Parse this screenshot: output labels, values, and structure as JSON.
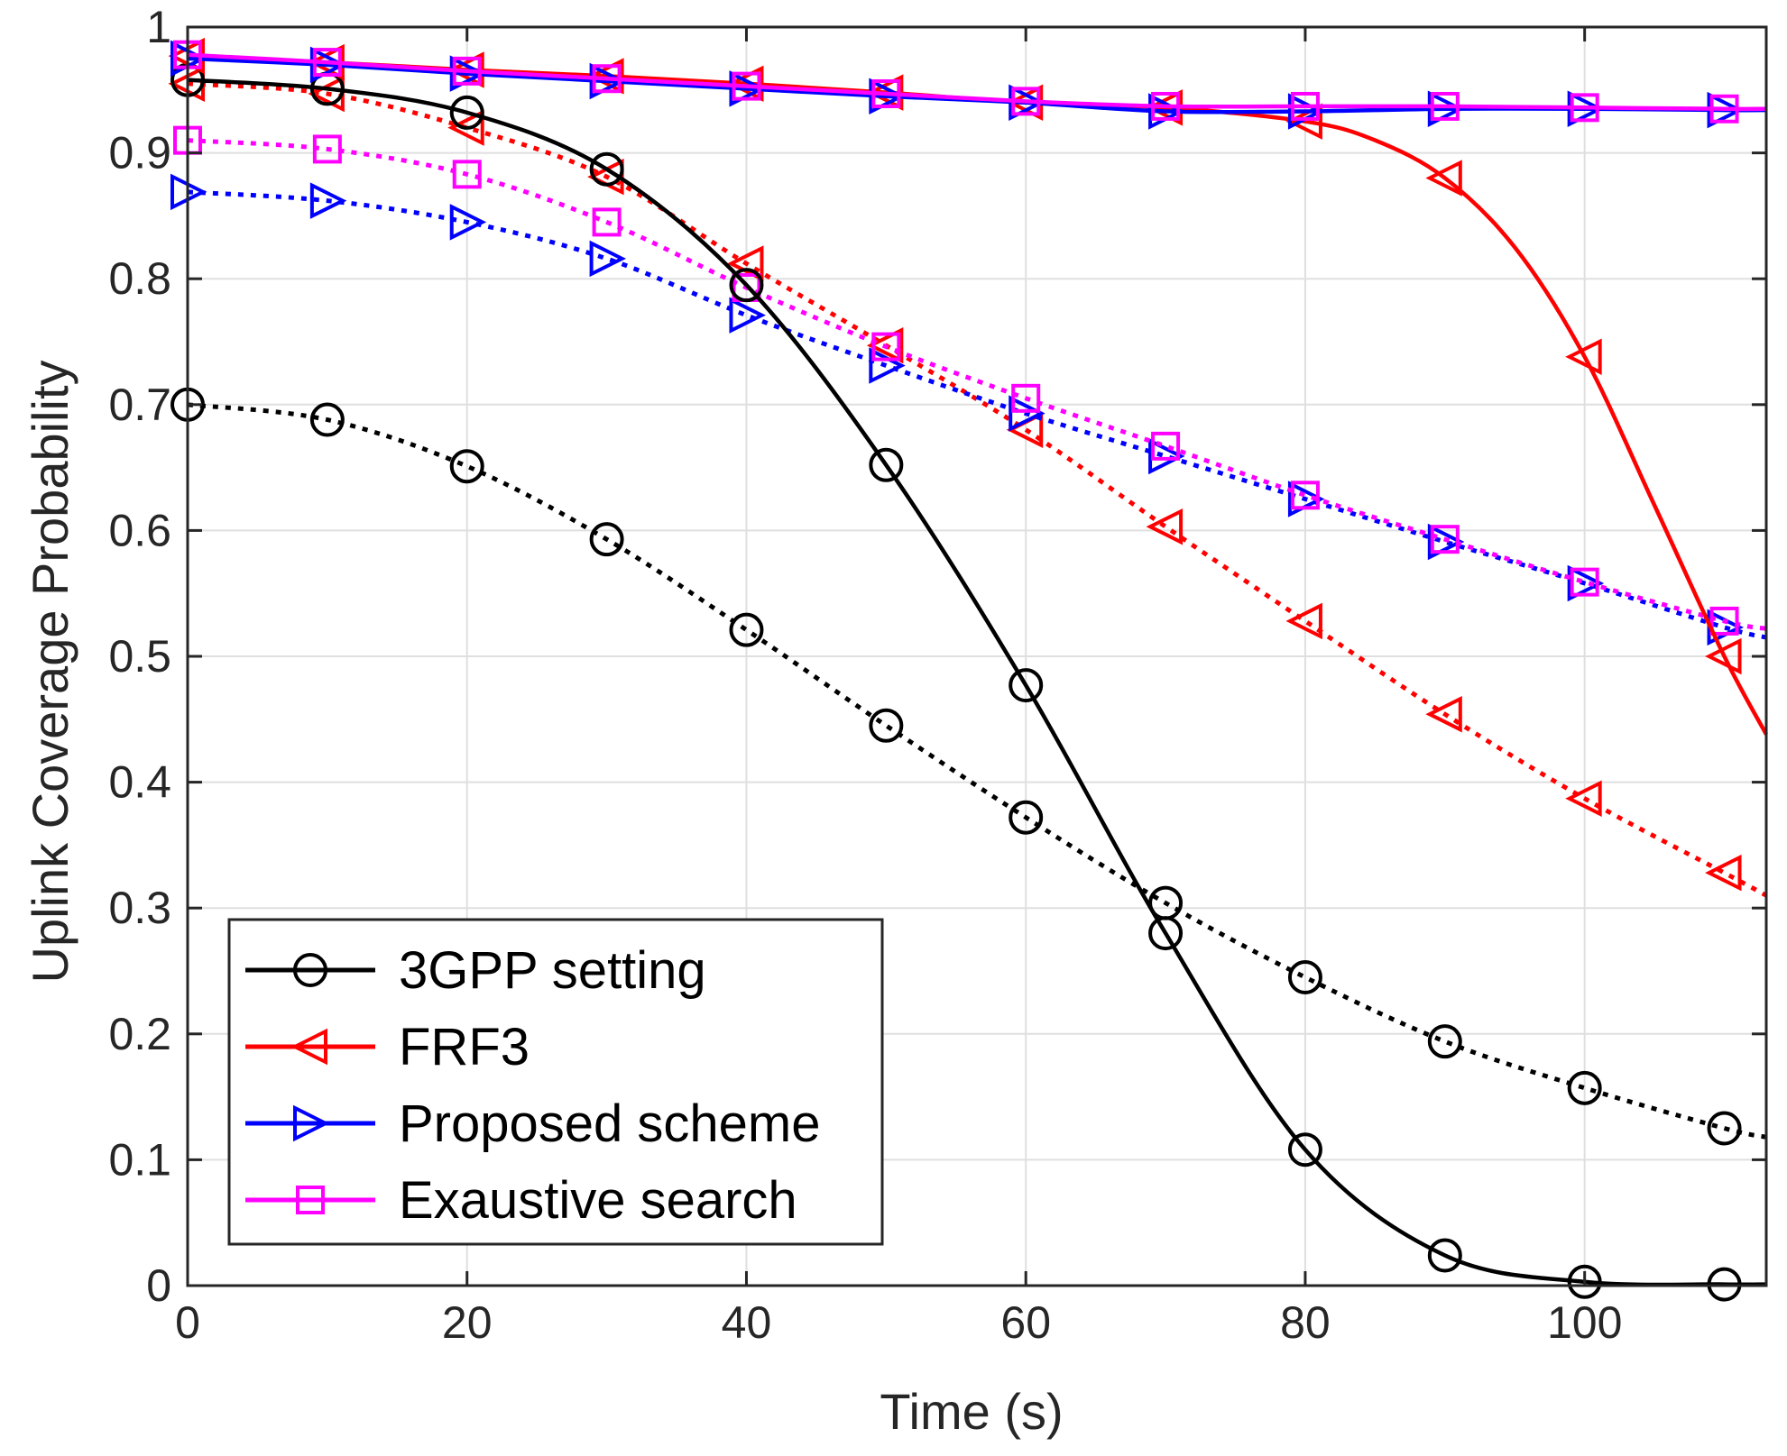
{
  "chart_data": {
    "type": "line",
    "title": "",
    "xlabel": "Time (s)",
    "ylabel": "Uplink Coverage Probability",
    "xlim": [
      0,
      113
    ],
    "ylim": [
      0,
      1
    ],
    "xticks": [
      0,
      20,
      40,
      60,
      80,
      100
    ],
    "yticks": [
      0,
      0.1,
      0.2,
      0.3,
      0.4,
      0.5,
      0.6,
      0.7,
      0.8,
      0.9,
      1
    ],
    "ytick_labels": [
      "0",
      "0.1",
      "0.2",
      "0.3",
      "0.4",
      "0.5",
      "0.6",
      "0.7",
      "0.8",
      "0.9",
      "1"
    ],
    "grid": true,
    "legend_position": "bottom-left",
    "legend": [
      {
        "label": "3GPP setting",
        "color": "#000000",
        "marker": "circle"
      },
      {
        "label": "FRF3",
        "color": "#ff0000",
        "marker": "triangle-left"
      },
      {
        "label": "Proposed scheme",
        "color": "#0000ff",
        "marker": "triangle-right"
      },
      {
        "label": "Exaustive search",
        "color": "#ff00ff",
        "marker": "square"
      }
    ],
    "series": [
      {
        "name": "3GPP setting (solid)",
        "color": "#000000",
        "marker": "circle",
        "dash": "solid",
        "x": [
          0,
          10,
          20,
          30,
          40,
          50,
          60,
          70,
          80,
          90,
          100,
          110,
          113
        ],
        "values": [
          0.958,
          0.951,
          0.932,
          0.887,
          0.795,
          0.652,
          0.477,
          0.28,
          0.108,
          0.024,
          0.003,
          0.001,
          0.001
        ],
        "marker_x": [
          0,
          10,
          20,
          30,
          40,
          50,
          60,
          70,
          80,
          90,
          100,
          110
        ],
        "marker_values": [
          0.958,
          0.951,
          0.932,
          0.887,
          0.795,
          0.652,
          0.477,
          0.28,
          0.108,
          0.024,
          0.003,
          0.001
        ]
      },
      {
        "name": "FRF3 (solid)",
        "color": "#ff0000",
        "marker": "triangle-left",
        "dash": "solid",
        "x": [
          0,
          10,
          20,
          30,
          40,
          50,
          60,
          70,
          80,
          85,
          90,
          95,
          100,
          105,
          110,
          113
        ],
        "values": [
          0.977,
          0.972,
          0.966,
          0.961,
          0.955,
          0.948,
          0.94,
          0.936,
          0.925,
          0.91,
          0.88,
          0.825,
          0.738,
          0.62,
          0.5,
          0.438
        ],
        "marker_x": [
          0,
          10,
          20,
          30,
          40,
          50,
          60,
          70,
          80,
          90,
          100,
          110
        ],
        "marker_values": [
          0.977,
          0.972,
          0.966,
          0.961,
          0.955,
          0.948,
          0.94,
          0.936,
          0.925,
          0.88,
          0.738,
          0.5
        ]
      },
      {
        "name": "Proposed scheme (solid)",
        "color": "#0000ff",
        "marker": "triangle-right",
        "dash": "solid",
        "x": [
          0,
          10,
          20,
          30,
          40,
          50,
          60,
          70,
          80,
          90,
          100,
          110,
          113
        ],
        "values": [
          0.975,
          0.97,
          0.963,
          0.957,
          0.951,
          0.945,
          0.94,
          0.933,
          0.933,
          0.935,
          0.935,
          0.934,
          0.934
        ],
        "marker_x": [
          0,
          10,
          20,
          30,
          40,
          50,
          60,
          70,
          80,
          90,
          100,
          110
        ],
        "marker_values": [
          0.975,
          0.97,
          0.963,
          0.957,
          0.951,
          0.945,
          0.94,
          0.933,
          0.933,
          0.935,
          0.935,
          0.934
        ]
      },
      {
        "name": "Exaustive search (solid)",
        "color": "#ff00ff",
        "marker": "square",
        "dash": "solid",
        "x": [
          0,
          10,
          20,
          30,
          40,
          50,
          60,
          70,
          80,
          90,
          100,
          110,
          113
        ],
        "values": [
          0.978,
          0.972,
          0.965,
          0.959,
          0.953,
          0.947,
          0.941,
          0.937,
          0.937,
          0.937,
          0.936,
          0.935,
          0.935
        ],
        "marker_x": [
          0,
          10,
          20,
          30,
          40,
          50,
          60,
          70,
          80,
          90,
          100,
          110
        ],
        "marker_values": [
          0.978,
          0.972,
          0.965,
          0.959,
          0.953,
          0.947,
          0.941,
          0.937,
          0.937,
          0.937,
          0.936,
          0.935
        ]
      },
      {
        "name": "3GPP setting (dotted)",
        "color": "#000000",
        "marker": "circle",
        "dash": "dotted",
        "x": [
          0,
          10,
          20,
          30,
          40,
          50,
          60,
          70,
          80,
          90,
          100,
          110,
          113
        ],
        "values": [
          0.7,
          0.688,
          0.651,
          0.593,
          0.521,
          0.445,
          0.372,
          0.304,
          0.245,
          0.194,
          0.157,
          0.125,
          0.118
        ],
        "marker_x": [
          0,
          10,
          20,
          30,
          40,
          50,
          60,
          70,
          80,
          90,
          100,
          110
        ],
        "marker_values": [
          0.7,
          0.688,
          0.651,
          0.593,
          0.521,
          0.445,
          0.372,
          0.304,
          0.245,
          0.194,
          0.157,
          0.125
        ]
      },
      {
        "name": "FRF3 (dotted)",
        "color": "#ff0000",
        "marker": "triangle-left",
        "dash": "dotted",
        "x": [
          0,
          10,
          20,
          30,
          40,
          50,
          60,
          70,
          80,
          90,
          100,
          110,
          113
        ],
        "values": [
          0.955,
          0.947,
          0.92,
          0.881,
          0.812,
          0.747,
          0.68,
          0.603,
          0.528,
          0.454,
          0.387,
          0.328,
          0.31
        ],
        "marker_x": [
          0,
          10,
          20,
          30,
          40,
          50,
          60,
          70,
          80,
          90,
          100,
          110
        ],
        "marker_values": [
          0.955,
          0.947,
          0.92,
          0.881,
          0.812,
          0.747,
          0.68,
          0.603,
          0.528,
          0.454,
          0.387,
          0.328
        ]
      },
      {
        "name": "Proposed scheme (dotted)",
        "color": "#0000ff",
        "marker": "triangle-right",
        "dash": "dotted",
        "x": [
          0,
          10,
          20,
          30,
          40,
          50,
          60,
          70,
          80,
          90,
          100,
          110,
          113
        ],
        "values": [
          0.869,
          0.862,
          0.845,
          0.816,
          0.771,
          0.731,
          0.693,
          0.659,
          0.625,
          0.591,
          0.558,
          0.523,
          0.515
        ],
        "marker_x": [
          0,
          10,
          20,
          30,
          40,
          50,
          60,
          70,
          80,
          90,
          100,
          110
        ],
        "marker_values": [
          0.869,
          0.862,
          0.845,
          0.816,
          0.771,
          0.731,
          0.693,
          0.659,
          0.625,
          0.591,
          0.558,
          0.523
        ]
      },
      {
        "name": "Exaustive search (dotted)",
        "color": "#ff00ff",
        "marker": "square",
        "dash": "dotted",
        "x": [
          0,
          10,
          20,
          30,
          40,
          50,
          60,
          70,
          80,
          90,
          100,
          110,
          113
        ],
        "values": [
          0.91,
          0.903,
          0.883,
          0.845,
          0.793,
          0.746,
          0.705,
          0.667,
          0.628,
          0.593,
          0.559,
          0.528,
          0.522
        ],
        "marker_x": [
          0,
          10,
          20,
          30,
          40,
          50,
          60,
          70,
          80,
          90,
          100,
          110
        ],
        "marker_values": [
          0.91,
          0.903,
          0.883,
          0.845,
          0.793,
          0.746,
          0.705,
          0.667,
          0.628,
          0.593,
          0.559,
          0.528
        ]
      }
    ]
  }
}
